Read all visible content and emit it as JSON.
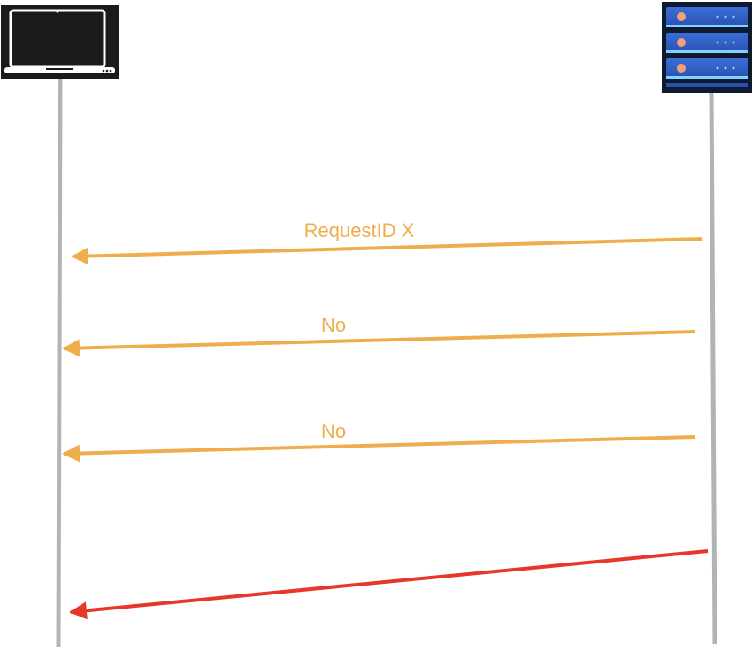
{
  "diagram": {
    "participants": [
      {
        "id": "client",
        "icon": "laptop-icon"
      },
      {
        "id": "server",
        "icon": "server-rack-icon"
      }
    ],
    "messages": [
      {
        "from": "server",
        "to": "client",
        "label": "RequestID X",
        "color": "#f0ad4e"
      },
      {
        "from": "server",
        "to": "client",
        "label": "No",
        "color": "#f0ad4e"
      },
      {
        "from": "server",
        "to": "client",
        "label": "No",
        "color": "#f0ad4e"
      },
      {
        "from": "server",
        "to": "client",
        "label": "",
        "color": "#e8362b"
      }
    ],
    "lifeline_color": "#b3b3b3"
  }
}
